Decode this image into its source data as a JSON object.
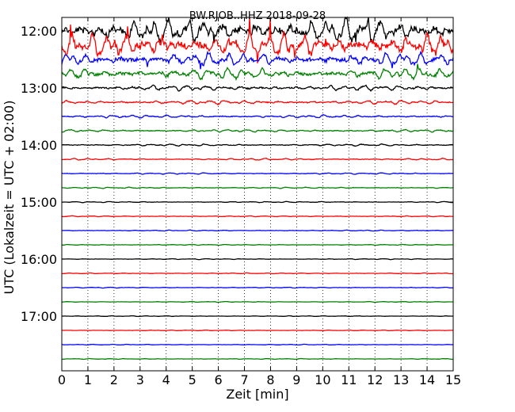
{
  "chart_data": {
    "type": "line",
    "title": "BW.RJOB..HHZ 2018-09-28",
    "xlabel": "Zeit  [min]",
    "ylabel": "UTC (Lokalzeit = UTC + 02:00)",
    "xlim": [
      0,
      15
    ],
    "x_ticks": [
      "0",
      "1",
      "2",
      "3",
      "4",
      "5",
      "6",
      "7",
      "8",
      "9",
      "10",
      "11",
      "12",
      "13",
      "14",
      "15"
    ],
    "y_tick_labels": [
      "12:00",
      "13:00",
      "14:00",
      "15:00",
      "16:00",
      "17:00"
    ],
    "vertical_grid": "dotted, every minute",
    "trace_interval_min": 15,
    "first_trace": "12:00",
    "trace_colors": [
      "#000000",
      "#ff0000",
      "#0000ff",
      "#008000"
    ],
    "relative_amplitude": [
      1.0,
      1.0,
      0.55,
      0.45,
      0.22,
      0.16,
      0.12,
      0.1,
      0.08,
      0.07,
      0.06,
      0.05,
      0.045,
      0.04,
      0.04,
      0.035,
      0.035,
      0.035,
      0.035,
      0.03,
      0.03,
      0.03,
      0.03,
      0.03
    ]
  }
}
